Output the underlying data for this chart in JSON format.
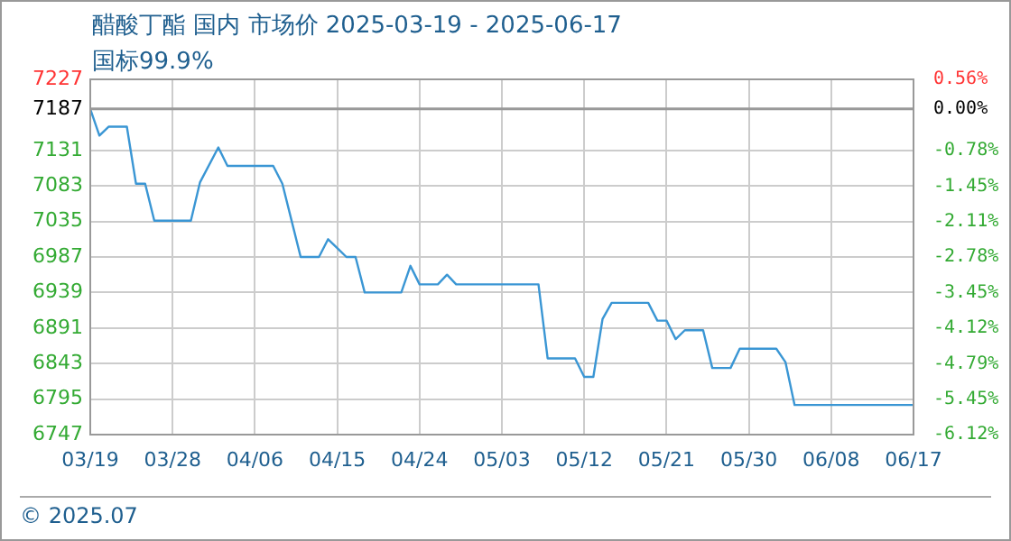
{
  "chart_data": {
    "type": "line",
    "title": "醋酸丁酯 国内 市场价 2025-03-19 - 2025-06-17",
    "subtitle": "国标99.9%",
    "annotations": [
      "© 2025.07"
    ],
    "series": [
      {
        "color": "#3a96d4",
        "x": [
          "2025-03-19",
          "2025-03-20",
          "2025-03-21",
          "2025-03-23",
          "2025-03-24",
          "2025-03-25",
          "2025-03-26",
          "2025-03-30",
          "2025-03-31",
          "2025-04-02",
          "2025-04-03",
          "2025-04-08",
          "2025-04-09",
          "2025-04-11",
          "2025-04-13",
          "2025-04-14",
          "2025-04-15",
          "2025-04-16",
          "2025-04-17",
          "2025-04-18",
          "2025-04-22",
          "2025-04-23",
          "2025-04-24",
          "2025-04-26",
          "2025-04-27",
          "2025-04-28",
          "2025-05-07",
          "2025-05-08",
          "2025-05-11",
          "2025-05-12",
          "2025-05-13",
          "2025-05-14",
          "2025-05-15",
          "2025-05-19",
          "2025-05-20",
          "2025-05-21",
          "2025-05-22",
          "2025-05-23",
          "2025-05-25",
          "2025-05-26",
          "2025-05-28",
          "2025-05-29",
          "2025-06-02",
          "2025-06-03",
          "2025-06-04",
          "2025-06-17"
        ],
        "values": [
          7187,
          7151,
          7163,
          7163,
          7086,
          7086,
          7036,
          7036,
          7088,
          7135,
          7110,
          7110,
          7086,
          6987,
          6987,
          7011,
          6999,
          6987,
          6987,
          6939,
          6939,
          6975,
          6950,
          6950,
          6963,
          6950,
          6950,
          6850,
          6850,
          6825,
          6825,
          6903,
          6925,
          6925,
          6901,
          6901,
          6876,
          6888,
          6888,
          6837,
          6837,
          6863,
          6863,
          6845,
          6787,
          6787
        ]
      }
    ],
    "xlim": [
      "2025-03-19",
      "2025-06-17"
    ],
    "xticks": [
      {
        "value": "2025-03-19",
        "label": "03/19"
      },
      {
        "value": "2025-03-28",
        "label": "03/28"
      },
      {
        "value": "2025-04-06",
        "label": "04/06"
      },
      {
        "value": "2025-04-15",
        "label": "04/15"
      },
      {
        "value": "2025-04-24",
        "label": "04/24"
      },
      {
        "value": "2025-05-03",
        "label": "05/03"
      },
      {
        "value": "2025-05-12",
        "label": "05/12"
      },
      {
        "value": "2025-05-21",
        "label": "05/21"
      },
      {
        "value": "2025-05-30",
        "label": "05/30"
      },
      {
        "value": "2025-06-08",
        "label": "06/08"
      },
      {
        "value": "2025-06-17",
        "label": "06/17"
      }
    ],
    "ylim": [
      6747,
      7227
    ],
    "yticks": [
      7227,
      7187,
      7131,
      7083,
      7035,
      6987,
      6939,
      6891,
      6843,
      6795,
      6747
    ],
    "y2lim": [
      -6.12,
      0.56
    ],
    "y2ticks": [
      {
        "value": 0.56,
        "label": "0.56%"
      },
      {
        "value": 0,
        "label": "0.00%"
      },
      {
        "value": -0.78,
        "label": "-0.78%"
      },
      {
        "value": -1.45,
        "label": "-1.45%"
      },
      {
        "value": -2.11,
        "label": "-2.11%"
      },
      {
        "value": -2.78,
        "label": "-2.78%"
      },
      {
        "value": -3.45,
        "label": "-3.45%"
      },
      {
        "value": -4.12,
        "label": "-4.12%"
      },
      {
        "value": -4.79,
        "label": "-4.79%"
      },
      {
        "value": -5.45,
        "label": "-5.45%"
      },
      {
        "value": -6.12,
        "label": "-6.12%"
      }
    ],
    "ref_lines": [
      {
        "axis": "y",
        "value": 7187,
        "color": "#999999"
      }
    ],
    "grid": true,
    "legend": false,
    "marker": "none",
    "line_style": "solid"
  }
}
